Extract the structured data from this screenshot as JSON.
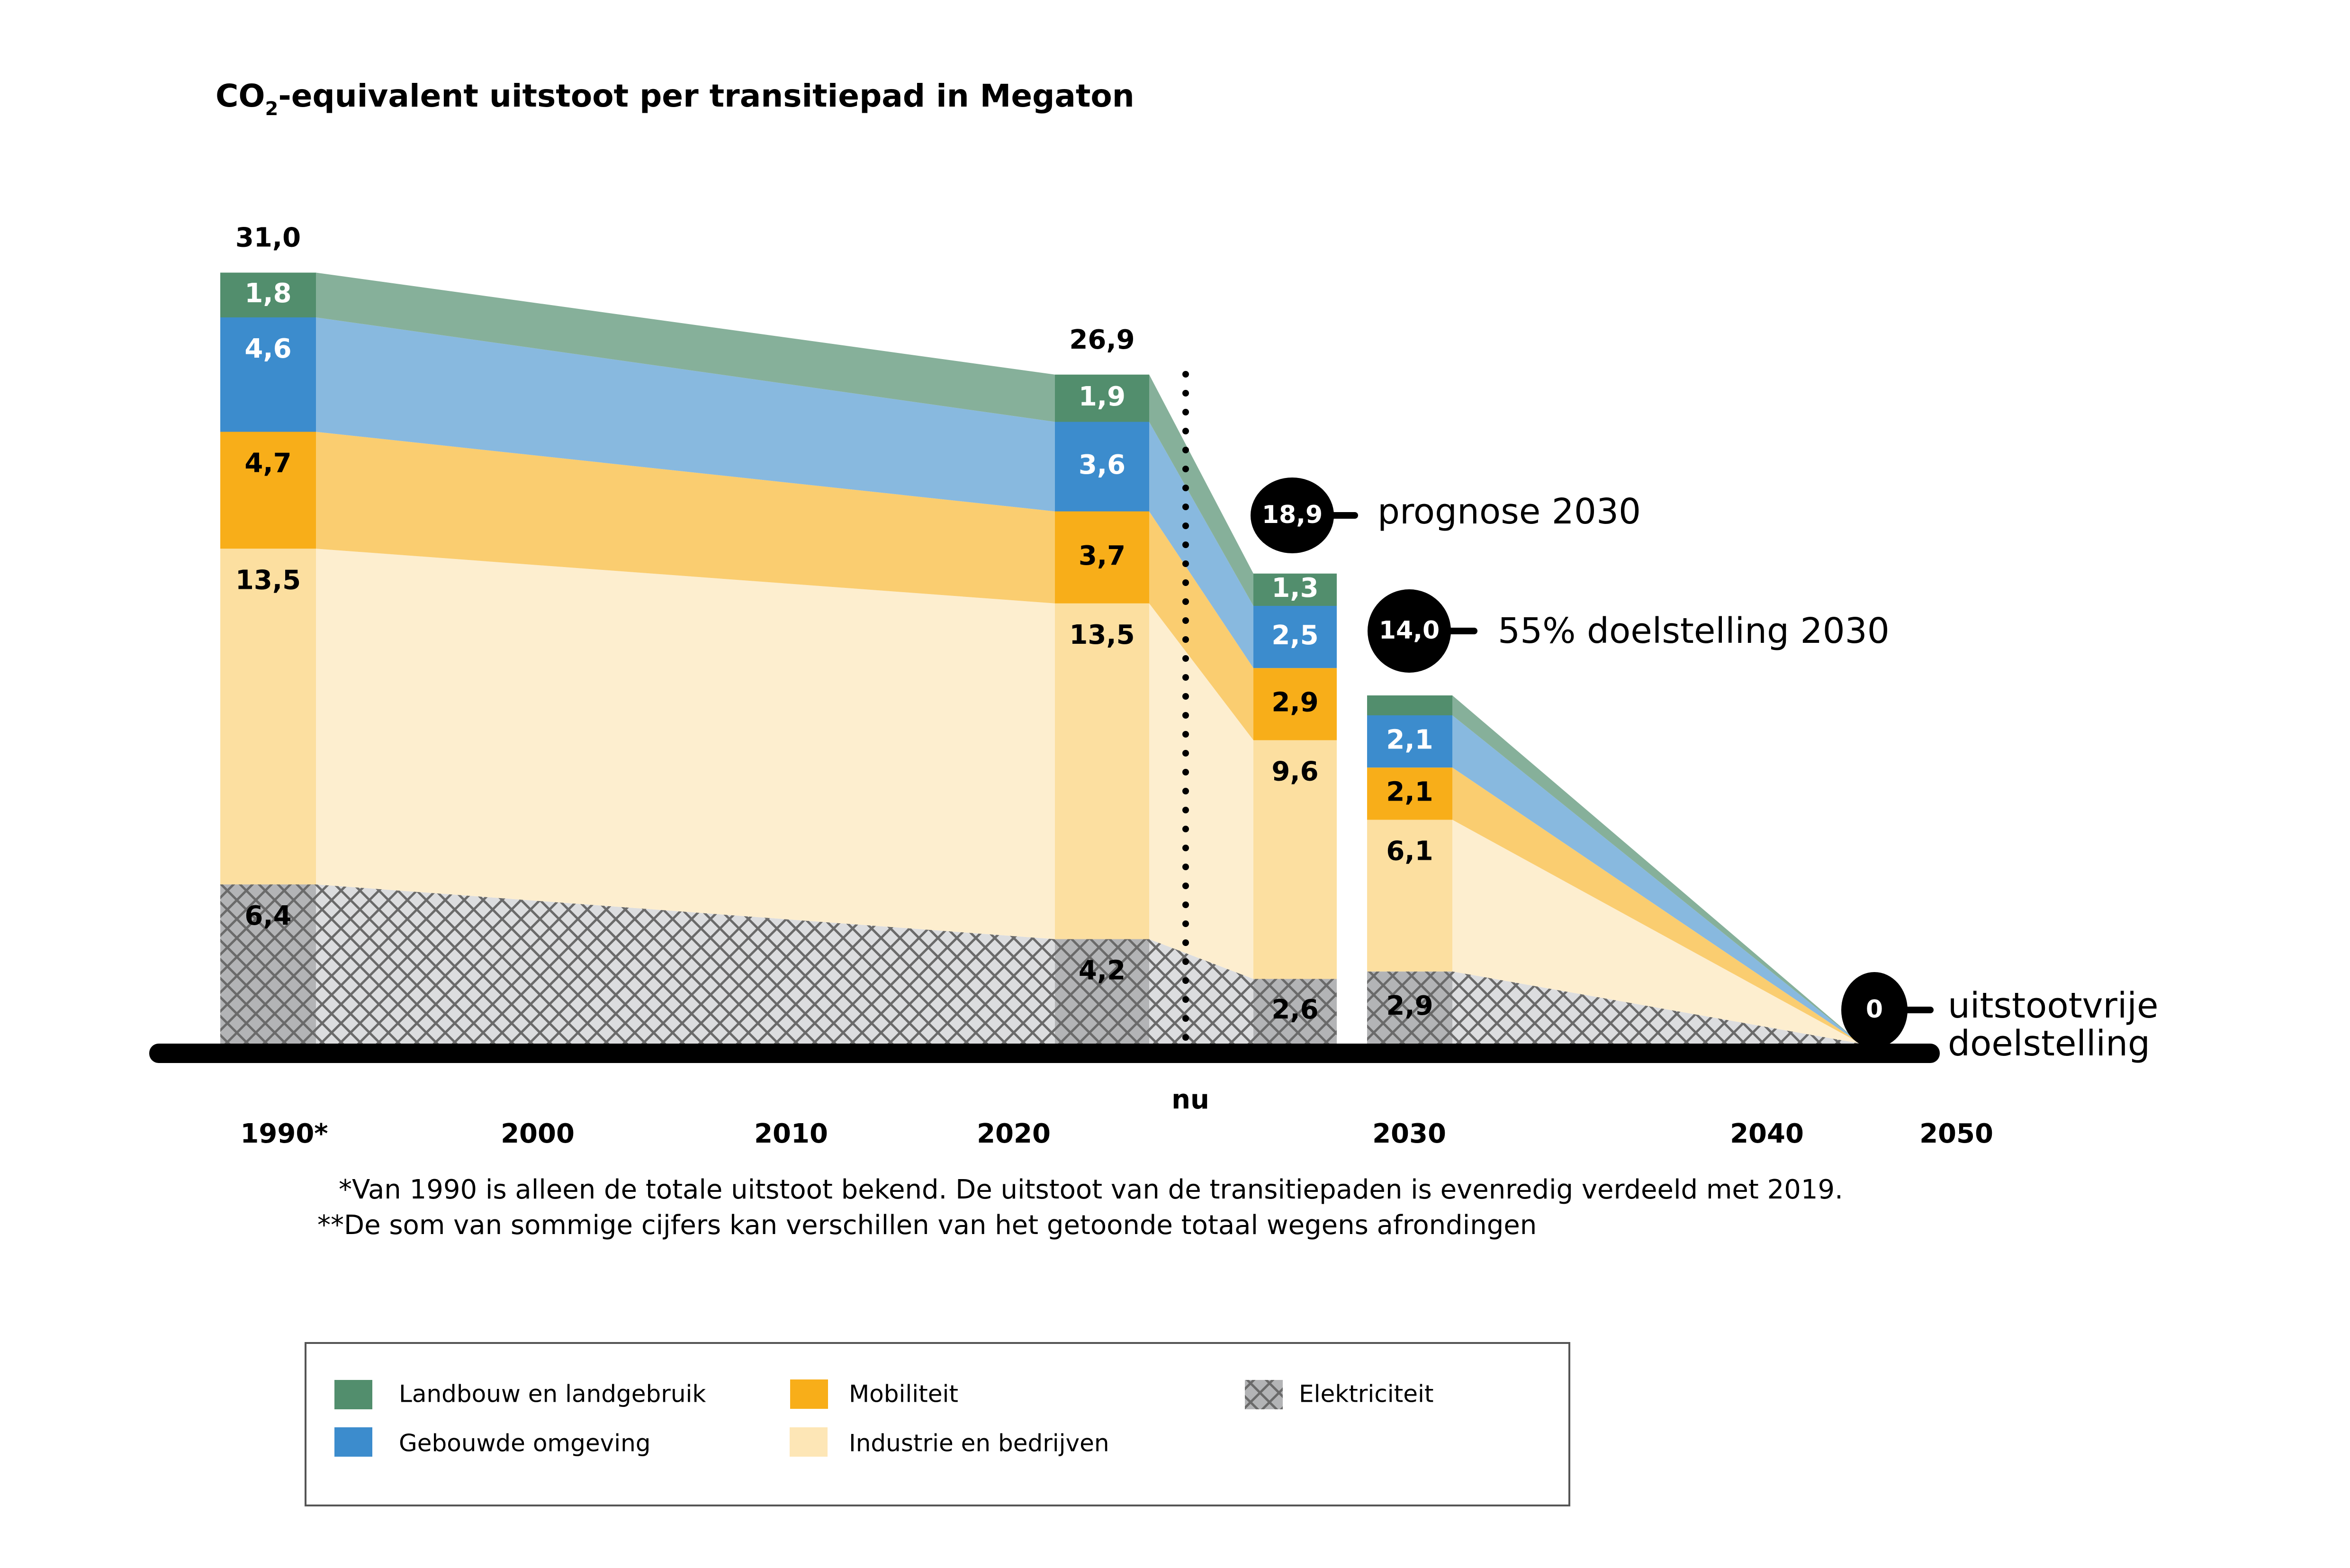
{
  "chart_data": {
    "type": "bar",
    "subtype": "stacked-bar-with-connecting-areas",
    "title": "CO2-equivalent uitstoot per transitiepad in Megaton",
    "title_parts": {
      "pre": "CO",
      "subscript": "2",
      "post": "-equivalent uitstoot per transitiepad in Megaton"
    },
    "unit": "Megaton",
    "xlabel": "",
    "ylabel": "",
    "x_ticks": [
      "1990*",
      "2000",
      "2010",
      "2020",
      "2030",
      "2040",
      "2050"
    ],
    "now_label": "nu",
    "series": [
      {
        "key": "elektriciteit",
        "name": "Elektriciteit",
        "color": "#b3b4b6",
        "fade_color": "#dcdddf",
        "hatch": true,
        "label_color": "#000000"
      },
      {
        "key": "industrie",
        "name": "Industrie en bedrijven",
        "color": "#fcdfa0",
        "fade_color": "#fdeecf",
        "label_color": "#000000"
      },
      {
        "key": "mobiliteit",
        "name": "Mobiliteit",
        "color": "#f8ae19",
        "fade_color": "#facd70",
        "label_color": "#000000"
      },
      {
        "key": "gebouwde",
        "name": "Gebouwde omgeving",
        "color": "#3c8ccd",
        "fade_color": "#88b9df",
        "label_color": "#ffffff"
      },
      {
        "key": "landbouw",
        "name": "Landbouw en landgebruik",
        "color": "#528e6d",
        "fade_color": "#86b09a",
        "label_color": "#ffffff"
      }
    ],
    "bars": [
      {
        "id": "1990",
        "year": 1990,
        "total": 31.0,
        "total_label": "31,0",
        "values": [
          6.4,
          13.5,
          4.7,
          4.6,
          1.8
        ],
        "labels": [
          "6,4",
          "13,5",
          "4,7",
          "4,6",
          "1,8"
        ]
      },
      {
        "id": "2022",
        "year": 2022,
        "total": 26.9,
        "total_label": "26,9",
        "values": [
          4.2,
          13.5,
          3.7,
          3.6,
          1.9
        ],
        "labels": [
          "4,2",
          "13,5",
          "3,7",
          "3,6",
          "1,9"
        ]
      },
      {
        "id": "prognose-2030",
        "year": 2030,
        "total": 18.9,
        "total_label": "18,9",
        "values": [
          2.6,
          9.6,
          2.9,
          2.5,
          1.3
        ],
        "labels": [
          "2,6",
          "9,6",
          "2,9",
          "2,5",
          "1,3"
        ]
      },
      {
        "id": "doelstelling-2030",
        "year": 2030,
        "total": 14.0,
        "total_label": "14,0",
        "values": [
          2.9,
          6.1,
          2.1,
          2.1,
          0.8
        ],
        "labels": [
          "2,9",
          "6,1",
          "2,1",
          "2,1",
          ""
        ]
      },
      {
        "id": "doelstelling-2050",
        "year": 2050,
        "total": 0,
        "total_label": "0",
        "values": [
          0,
          0,
          0,
          0,
          0
        ],
        "labels": [
          "",
          "",
          "",
          "",
          ""
        ]
      }
    ],
    "annotations": [
      {
        "bar": "prognose-2030",
        "value_label": "18,9",
        "text": "prognose 2030"
      },
      {
        "bar": "doelstelling-2030",
        "value_label": "14,0",
        "text": "55% doelstelling 2030"
      },
      {
        "bar": "doelstelling-2050",
        "value_label": "0",
        "text_lines": [
          "uitstootvrije",
          "doelstelling"
        ]
      }
    ],
    "footnotes": [
      "*Van 1990 is alleen de totale uitstoot bekend. De uitstoot van de transitiepaden is evenredig verdeeld met 2019.",
      "**De som van sommige cijfers kan verschillen van het getoonde totaal wegens afrondingen"
    ],
    "legend_position": "bottom-left",
    "grid": false
  },
  "legend": {
    "items": [
      {
        "label": "Landbouw en landgebruik",
        "color": "#528e6d"
      },
      {
        "label": "Gebouwde omgeving",
        "color": "#3c8ccd"
      },
      {
        "label": "Mobiliteit",
        "color": "#f8ae19"
      },
      {
        "label": "Industrie en bedrijven",
        "color": "#fde6b6"
      },
      {
        "label": "Elektriciteit",
        "color": "#b3b4b6",
        "hatch": true
      }
    ]
  }
}
